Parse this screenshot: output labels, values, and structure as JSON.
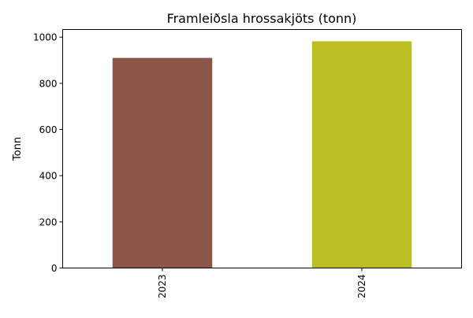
{
  "chart_data": {
    "type": "bar",
    "title": "Framleiðsla hrossakjöts (tonn)",
    "xlabel": "",
    "ylabel": "Tonn",
    "categories": [
      "2023",
      "2024"
    ],
    "values": [
      910,
      982
    ],
    "colors": [
      "#8c564b",
      "#bcbd22"
    ],
    "ylim": [
      0,
      1033
    ],
    "yticks": [
      0,
      200,
      400,
      600,
      800,
      1000
    ],
    "grid": false,
    "xtick_rotation": 90
  }
}
